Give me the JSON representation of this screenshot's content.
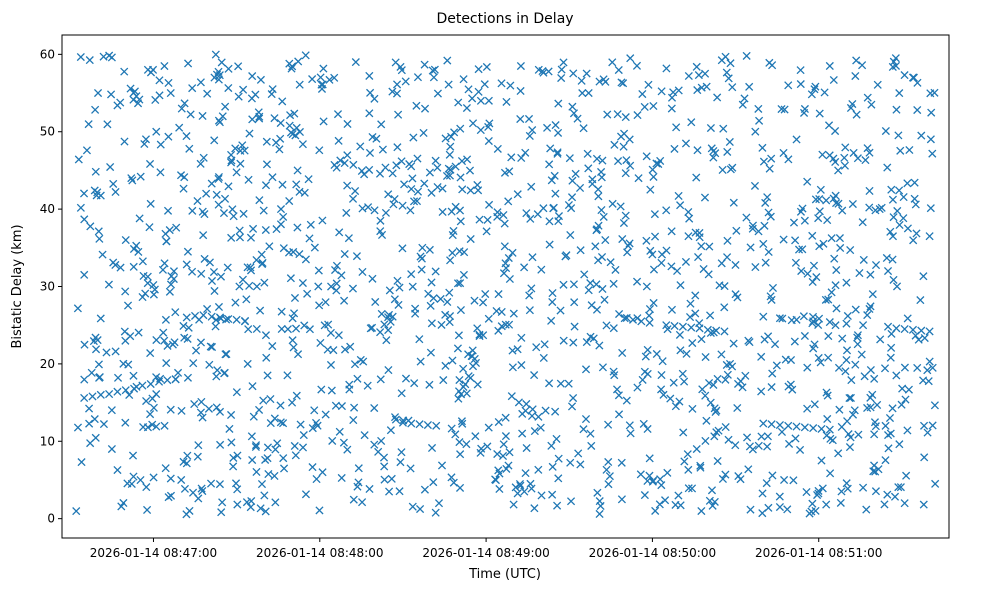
{
  "chart_data": {
    "type": "scatter",
    "title": "Detections in Delay",
    "xlabel": "Time (UTC)",
    "ylabel": "Bistatic Delay (km)",
    "x_is_time": true,
    "xlim": [
      "2026-01-14 08:46:27",
      "2026-01-14 08:51:47"
    ],
    "ylim": [
      -2.5,
      62.5
    ],
    "x_ticks": [
      {
        "value": "2026-01-14 08:47:00",
        "label": "2026-01-14 08:47:00"
      },
      {
        "value": "2026-01-14 08:48:00",
        "label": "2026-01-14 08:48:00"
      },
      {
        "value": "2026-01-14 08:49:00",
        "label": "2026-01-14 08:49:00"
      },
      {
        "value": "2026-01-14 08:50:00",
        "label": "2026-01-14 08:50:00"
      },
      {
        "value": "2026-01-14 08:51:00",
        "label": "2026-01-14 08:51:00"
      }
    ],
    "y_ticks": [
      0,
      10,
      20,
      30,
      40,
      50,
      60
    ],
    "marker": "x",
    "color": "#1f77b4",
    "grid": false,
    "legend": false,
    "series": [
      {
        "time_range": [
          "2026-01-14 08:46:32",
          "2026-01-14 08:51:42"
        ],
        "points": [
          [
            "2026-01-14 08:46:35",
            15.6
          ],
          [
            "2026-01-14 08:46:38",
            15.8
          ],
          [
            "2026-01-14 08:46:41",
            16.0
          ],
          [
            "2026-01-14 08:46:44",
            16.1
          ],
          [
            "2026-01-14 08:46:47",
            16.4
          ],
          [
            "2026-01-14 08:46:50",
            16.6
          ],
          [
            "2026-01-14 08:46:53",
            16.8
          ],
          [
            "2026-01-14 08:46:56",
            17.2
          ],
          [
            "2026-01-14 08:46:59",
            17.4
          ],
          [
            "2026-01-14 08:47:02",
            17.7
          ],
          [
            "2026-01-14 08:47:05",
            17.9
          ],
          [
            "2026-01-14 08:47:08",
            18.0
          ],
          [
            "2026-01-14 08:47:12",
            26.0
          ],
          [
            "2026-01-14 08:47:15",
            26.2
          ],
          [
            "2026-01-14 08:47:18",
            26.3
          ],
          [
            "2026-01-14 08:47:21",
            26.1
          ],
          [
            "2026-01-14 08:47:24",
            26.0
          ],
          [
            "2026-01-14 08:47:27",
            25.8
          ],
          [
            "2026-01-14 08:47:30",
            25.7
          ],
          [
            "2026-01-14 08:47:33",
            25.5
          ],
          [
            "2026-01-14 08:46:58",
            11.8
          ],
          [
            "2026-01-14 08:47:01",
            11.9
          ],
          [
            "2026-01-14 08:47:04",
            12.0
          ],
          [
            "2026-01-14 08:47:20",
            14.2
          ],
          [
            "2026-01-14 08:47:24",
            13.8
          ],
          [
            "2026-01-14 08:47:28",
            13.4
          ],
          [
            "2026-01-14 08:48:30",
            12.4
          ],
          [
            "2026-01-14 08:48:33",
            12.3
          ],
          [
            "2026-01-14 08:48:36",
            12.2
          ],
          [
            "2026-01-14 08:48:39",
            12.1
          ],
          [
            "2026-01-14 08:48:42",
            12.0
          ],
          [
            "2026-01-14 08:49:50",
            25.9
          ],
          [
            "2026-01-14 08:49:53",
            25.7
          ],
          [
            "2026-01-14 08:49:56",
            25.5
          ],
          [
            "2026-01-14 08:49:59",
            25.3
          ],
          [
            "2026-01-14 08:50:05",
            25.0
          ],
          [
            "2026-01-14 08:50:08",
            24.9
          ],
          [
            "2026-01-14 08:50:11",
            24.8
          ],
          [
            "2026-01-14 08:50:14",
            24.7
          ],
          [
            "2026-01-14 08:50:17",
            24.6
          ],
          [
            "2026-01-14 08:50:20",
            24.4
          ],
          [
            "2026-01-14 08:50:23",
            24.3
          ],
          [
            "2026-01-14 08:50:26",
            24.2
          ],
          [
            "2026-01-14 08:50:40",
            12.3
          ],
          [
            "2026-01-14 08:50:43",
            12.2
          ],
          [
            "2026-01-14 08:50:46",
            12.1
          ],
          [
            "2026-01-14 08:50:49",
            12.0
          ],
          [
            "2026-01-14 08:50:52",
            11.9
          ],
          [
            "2026-01-14 08:50:55",
            11.8
          ],
          [
            "2026-01-14 08:50:58",
            11.7
          ],
          [
            "2026-01-14 08:51:01",
            11.6
          ],
          [
            "2026-01-14 08:51:04",
            11.5
          ],
          [
            "2026-01-14 08:50:40",
            26.1
          ],
          [
            "2026-01-14 08:50:46",
            25.9
          ],
          [
            "2026-01-14 08:50:52",
            25.7
          ],
          [
            "2026-01-14 08:50:58",
            25.5
          ],
          [
            "2026-01-14 08:51:04",
            25.4
          ],
          [
            "2026-01-14 08:51:10",
            25.2
          ],
          [
            "2026-01-14 08:51:16",
            25.0
          ],
          [
            "2026-01-14 08:51:25",
            24.8
          ],
          [
            "2026-01-14 08:51:28",
            24.6
          ],
          [
            "2026-01-14 08:51:31",
            24.5
          ],
          [
            "2026-01-14 08:51:34",
            24.4
          ],
          [
            "2026-01-14 08:51:37",
            24.3
          ],
          [
            "2026-01-14 08:51:40",
            24.2
          ],
          [
            "2026-01-14 08:51:20",
            10.9
          ],
          [
            "2026-01-14 08:51:26",
            11.0
          ],
          [
            "2026-01-14 08:51:32",
            11.4
          ],
          [
            "2026-01-14 08:51:38",
            12.0
          ],
          [
            "2026-01-14 08:46:36",
            47.6
          ],
          [
            "2026-01-14 08:46:40",
            55.0
          ],
          [
            "2026-01-14 08:46:42",
            59.7
          ],
          [
            "2026-01-14 08:46:45",
            59.6
          ],
          [
            "2026-01-14 08:46:47",
            53.4
          ],
          [
            "2026-01-14 08:46:50",
            36.0
          ],
          [
            "2026-01-14 08:46:52",
            44.0
          ],
          [
            "2026-01-14 08:46:55",
            38.8
          ],
          [
            "2026-01-14 08:46:58",
            58.0
          ],
          [
            "2026-01-14 08:47:01",
            50.0
          ],
          [
            "2026-01-14 08:47:04",
            33.0
          ],
          [
            "2026-01-14 08:47:07",
            22.5
          ],
          [
            "2026-01-14 08:47:10",
            5.0
          ],
          [
            "2026-01-14 08:47:13",
            1.0
          ],
          [
            "2026-01-14 08:47:16",
            8.0
          ],
          [
            "2026-01-14 08:47:19",
            42.0
          ],
          [
            "2026-01-14 08:47:22",
            57.0
          ],
          [
            "2026-01-14 08:47:25",
            52.0
          ],
          [
            "2026-01-14 08:47:28",
            47.0
          ],
          [
            "2026-01-14 08:47:31",
            30.0
          ],
          [
            "2026-01-14 08:47:34",
            20.0
          ],
          [
            "2026-01-14 08:47:37",
            9.5
          ],
          [
            "2026-01-14 08:47:40",
            3.0
          ],
          [
            "2026-01-14 08:47:43",
            55.5
          ],
          [
            "2026-01-14 08:47:46",
            40.0
          ],
          [
            "2026-01-14 08:47:49",
            58.8
          ],
          [
            "2026-01-14 08:47:52",
            45.0
          ],
          [
            "2026-01-14 08:47:55",
            33.5
          ],
          [
            "2026-01-14 08:47:58",
            14.0
          ],
          [
            "2026-01-14 08:48:01",
            6.0
          ],
          [
            "2026-01-14 08:48:04",
            24.0
          ],
          [
            "2026-01-14 08:48:07",
            37.0
          ],
          [
            "2026-01-14 08:48:10",
            51.0
          ],
          [
            "2026-01-14 08:48:13",
            59.0
          ],
          [
            "2026-01-14 08:48:16",
            44.5
          ],
          [
            "2026-01-14 08:48:19",
            31.0
          ],
          [
            "2026-01-14 08:48:22",
            18.0
          ],
          [
            "2026-01-14 08:48:25",
            3.5
          ],
          [
            "2026-01-14 08:48:28",
            48.0
          ],
          [
            "2026-01-14 08:48:31",
            56.5
          ],
          [
            "2026-01-14 08:48:34",
            41.0
          ],
          [
            "2026-01-14 08:48:37",
            35.0
          ],
          [
            "2026-01-14 08:48:40",
            27.5
          ],
          [
            "2026-01-14 08:48:43",
            2.0
          ],
          [
            "2026-01-14 08:48:46",
            59.2
          ],
          [
            "2026-01-14 08:48:49",
            45.5
          ],
          [
            "2026-01-14 08:48:52",
            31.5
          ],
          [
            "2026-01-14 08:48:55",
            21.0
          ],
          [
            "2026-01-14 08:48:58",
            8.5
          ],
          [
            "2026-01-14 08:49:01",
            54.0
          ],
          [
            "2026-01-14 08:49:04",
            39.0
          ],
          [
            "2026-01-14 08:49:07",
            33.0
          ],
          [
            "2026-01-14 08:49:10",
            26.5
          ],
          [
            "2026-01-14 08:49:13",
            11.0
          ],
          [
            "2026-01-14 08:49:16",
            4.5
          ],
          [
            "2026-01-14 08:49:19",
            58.0
          ],
          [
            "2026-01-14 08:49:22",
            50.5
          ],
          [
            "2026-01-14 08:49:25",
            42.0
          ],
          [
            "2026-01-14 08:49:28",
            23.0
          ],
          [
            "2026-01-14 08:49:31",
            14.5
          ],
          [
            "2026-01-14 08:49:34",
            7.0
          ],
          [
            "2026-01-14 08:49:37",
            55.0
          ],
          [
            "2026-01-14 08:49:40",
            46.5
          ],
          [
            "2026-01-14 08:49:43",
            36.0
          ],
          [
            "2026-01-14 08:49:46",
            19.0
          ],
          [
            "2026-01-14 08:49:49",
            2.5
          ],
          [
            "2026-01-14 08:49:52",
            59.5
          ],
          [
            "2026-01-14 08:49:55",
            44.0
          ],
          [
            "2026-01-14 08:49:58",
            30.0
          ],
          [
            "2026-01-14 08:50:01",
            1.0
          ],
          [
            "2026-01-14 08:50:04",
            16.0
          ],
          [
            "2026-01-14 08:50:07",
            53.0
          ],
          [
            "2026-01-14 08:50:10",
            40.5
          ],
          [
            "2026-01-14 08:50:13",
            36.5
          ],
          [
            "2026-01-14 08:50:16",
            9.0
          ],
          [
            "2026-01-14 08:50:19",
            57.5
          ],
          [
            "2026-01-14 08:50:22",
            47.5
          ],
          [
            "2026-01-14 08:50:25",
            33.0
          ],
          [
            "2026-01-14 08:50:28",
            20.0
          ],
          [
            "2026-01-14 08:50:31",
            5.5
          ],
          [
            "2026-01-14 08:50:34",
            59.8
          ],
          [
            "2026-01-14 08:50:37",
            43.0
          ],
          [
            "2026-01-14 08:50:40",
            35.5
          ],
          [
            "2026-01-14 08:50:43",
            17.0
          ],
          [
            "2026-01-14 08:50:46",
            1.5
          ],
          [
            "2026-01-14 08:50:49",
            56.0
          ],
          [
            "2026-01-14 08:50:52",
            49.0
          ],
          [
            "2026-01-14 08:50:55",
            38.5
          ],
          [
            "2026-01-14 08:50:58",
            22.0
          ],
          [
            "2026-01-14 08:51:01",
            7.5
          ],
          [
            "2026-01-14 08:51:04",
            58.5
          ],
          [
            "2026-01-14 08:51:07",
            45.0
          ],
          [
            "2026-01-14 08:51:10",
            30.5
          ],
          [
            "2026-01-14 08:51:13",
            14.0
          ],
          [
            "2026-01-14 08:51:16",
            4.0
          ],
          [
            "2026-01-14 08:51:19",
            53.5
          ],
          [
            "2026-01-14 08:51:22",
            40.0
          ],
          [
            "2026-01-14 08:51:25",
            32.0
          ],
          [
            "2026-01-14 08:51:28",
            18.5
          ],
          [
            "2026-01-14 08:51:31",
            2.0
          ],
          [
            "2026-01-14 08:51:34",
            57.0
          ],
          [
            "2026-01-14 08:51:37",
            49.5
          ],
          [
            "2026-01-14 08:51:40",
            36.5
          ],
          [
            "2026-01-14 08:51:42",
            4.5
          ],
          [
            "2026-01-14 08:47:50",
            15.0
          ],
          [
            "2026-01-14 08:48:20",
            28.0
          ],
          [
            "2026-01-14 08:49:40",
            27.0
          ],
          [
            "2026-01-14 08:50:30",
            29.0
          ],
          [
            "2026-01-14 08:51:10",
            20.5
          ],
          [
            "2026-01-14 08:46:45",
            9.0
          ],
          [
            "2026-01-14 08:47:40",
            30.5
          ],
          [
            "2026-01-14 08:48:50",
            15.5
          ],
          [
            "2026-01-14 08:49:20",
            3.0
          ],
          [
            "2026-01-14 08:50:50",
            20.5
          ]
        ]
      }
    ]
  }
}
